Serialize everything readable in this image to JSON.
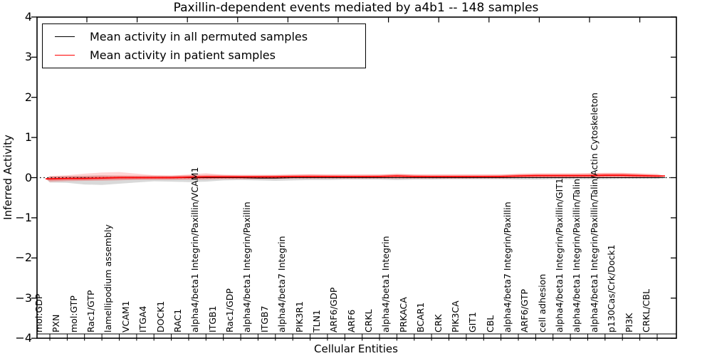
{
  "title": "Paxillin-dependent events mediated by a4b1 -- 148 samples",
  "legend": {
    "items": [
      {
        "label": "Mean activity in all permuted samples",
        "color": "#000000"
      },
      {
        "label": "Mean activity in patient samples",
        "color": "#ff0000"
      }
    ]
  },
  "axes": {
    "x_label": "Cellular Entities",
    "y_label": "Inferred Activity",
    "y_tick_labels": [
      "4",
      "3",
      "2",
      "1",
      "0",
      "−1",
      "−2",
      "−3",
      "−4"
    ]
  },
  "chart_data": {
    "type": "line",
    "title": "Paxillin-dependent events mediated by a4b1 -- 148 samples",
    "xlabel": "Cellular Entities",
    "ylabel": "Inferred Activity",
    "ylim": [
      -4,
      4
    ],
    "y_ticks": [
      4,
      3,
      2,
      1,
      0,
      -1,
      -2,
      -3,
      -4
    ],
    "grid": false,
    "legend_position": "upper left",
    "zero_reference_line": 0,
    "categories": [
      "mol:GDP",
      "PXN",
      "mol:GTP",
      "Rac1/GTP",
      "lamellipodium assembly",
      "VCAM1",
      "ITGA4",
      "DOCK1",
      "RAC1",
      "alpha4/beta1 Integrin/Paxillin/VCAM1",
      "ITGB1",
      "Rac1/GDP",
      "alpha4/beta1 Integrin/Paxillin",
      "ITGB7",
      "alpha4/beta7 Integrin",
      "PIK3R1",
      "TLN1",
      "ARF6/GDP",
      "ARF6",
      "CRKL",
      "alpha4/beta1 Integrin",
      "PRKACA",
      "BCAR1",
      "CRK",
      "PIK3CA",
      "GIT1",
      "CBL",
      "alpha4/beta7 Integrin/Paxillin",
      "ARF6/GTP",
      "cell adhesion",
      "alpha4/beta1 Integrin/Paxillin/GIT1",
      "alpha4/beta1 Integrin/Paxillin/Talin",
      "alpha4/beta1 Integrin/Paxillin/Talin/Actin Cytoskeleton",
      "p130Cas/Crk/Dock1",
      "PI3K",
      "CRKL/CBL"
    ],
    "series": [
      {
        "name": "Mean activity in all permuted samples",
        "color": "#000000",
        "style": "solid",
        "values": [
          -0.03,
          -0.02,
          -0.01,
          -0.01,
          0,
          0,
          0,
          0,
          0,
          0,
          0,
          0,
          -0.01,
          -0.01,
          0,
          0,
          0,
          0,
          0,
          0,
          0,
          0,
          0,
          0,
          0,
          0,
          0,
          0,
          0,
          0,
          0,
          0,
          0,
          0,
          0,
          0
        ]
      },
      {
        "name": "Mean activity in patient samples",
        "color": "#ff0000",
        "style": "solid",
        "values": [
          -0.03,
          -0.02,
          -0.02,
          -0.01,
          0,
          0,
          0,
          0,
          0.01,
          0.02,
          0.02,
          0.02,
          0.02,
          0.02,
          0.03,
          0.03,
          0.03,
          0.03,
          0.03,
          0.03,
          0.04,
          0.03,
          0.03,
          0.03,
          0.03,
          0.03,
          0.03,
          0.04,
          0.05,
          0.05,
          0.05,
          0.05,
          0.06,
          0.06,
          0.05,
          0.04
        ]
      }
    ],
    "bands": [
      {
        "name": "permuted-samples-range",
        "color": "rgba(120,120,120,0.28)",
        "hi": [
          0.03,
          0.04,
          0.05,
          0.06,
          0.05,
          0.04,
          0.04,
          0.04,
          0.04,
          0.04,
          0.04,
          0.04,
          0.04,
          0.04,
          0.04,
          0.04,
          0.04,
          0.04,
          0.04,
          0.04,
          0.04,
          0.04,
          0.04,
          0.04,
          0.04,
          0.04,
          0.04,
          0.04,
          0.04,
          0.04,
          0.04,
          0.04,
          0.04,
          0.04,
          0.04,
          0.03
        ],
        "lo": [
          -0.12,
          -0.13,
          -0.17,
          -0.18,
          -0.15,
          -0.12,
          -0.09,
          -0.1,
          -0.11,
          -0.1,
          -0.07,
          -0.06,
          -0.07,
          -0.08,
          -0.07,
          -0.06,
          -0.06,
          -0.05,
          -0.05,
          -0.05,
          -0.06,
          -0.05,
          -0.05,
          -0.04,
          -0.04,
          -0.04,
          -0.04,
          -0.05,
          -0.05,
          -0.04,
          -0.04,
          -0.04,
          -0.04,
          -0.03,
          -0.03,
          -0.03
        ]
      },
      {
        "name": "patient-samples-range-outer",
        "color": "rgba(255,30,30,0.18)",
        "hi": [
          0.04,
          0.06,
          0.1,
          0.13,
          0.14,
          0.1,
          0.06,
          0.05,
          0.08,
          0.11,
          0.07,
          0.05,
          0.05,
          0.06,
          0.06,
          0.08,
          0.06,
          0.05,
          0.05,
          0.06,
          0.09,
          0.07,
          0.05,
          0.05,
          0.05,
          0.05,
          0.06,
          0.09,
          0.1,
          0.1,
          0.1,
          0.11,
          0.12,
          0.12,
          0.1,
          0.06
        ],
        "lo": [
          -0.11,
          -0.09,
          -0.08,
          -0.08,
          -0.07,
          -0.05,
          -0.04,
          -0.04,
          -0.05,
          -0.05,
          -0.03,
          -0.03,
          -0.03,
          -0.03,
          -0.02,
          -0.02,
          -0.02,
          -0.02,
          -0.02,
          -0.02,
          -0.03,
          -0.02,
          -0.02,
          -0.02,
          -0.02,
          -0.01,
          -0.01,
          -0.01,
          0,
          0,
          0,
          0,
          0.01,
          0.01,
          0.01,
          0.02
        ]
      },
      {
        "name": "patient-samples-range-inner",
        "color": "rgba(255,30,30,0.30)",
        "half_width_about_mean": 0.05
      }
    ]
  }
}
